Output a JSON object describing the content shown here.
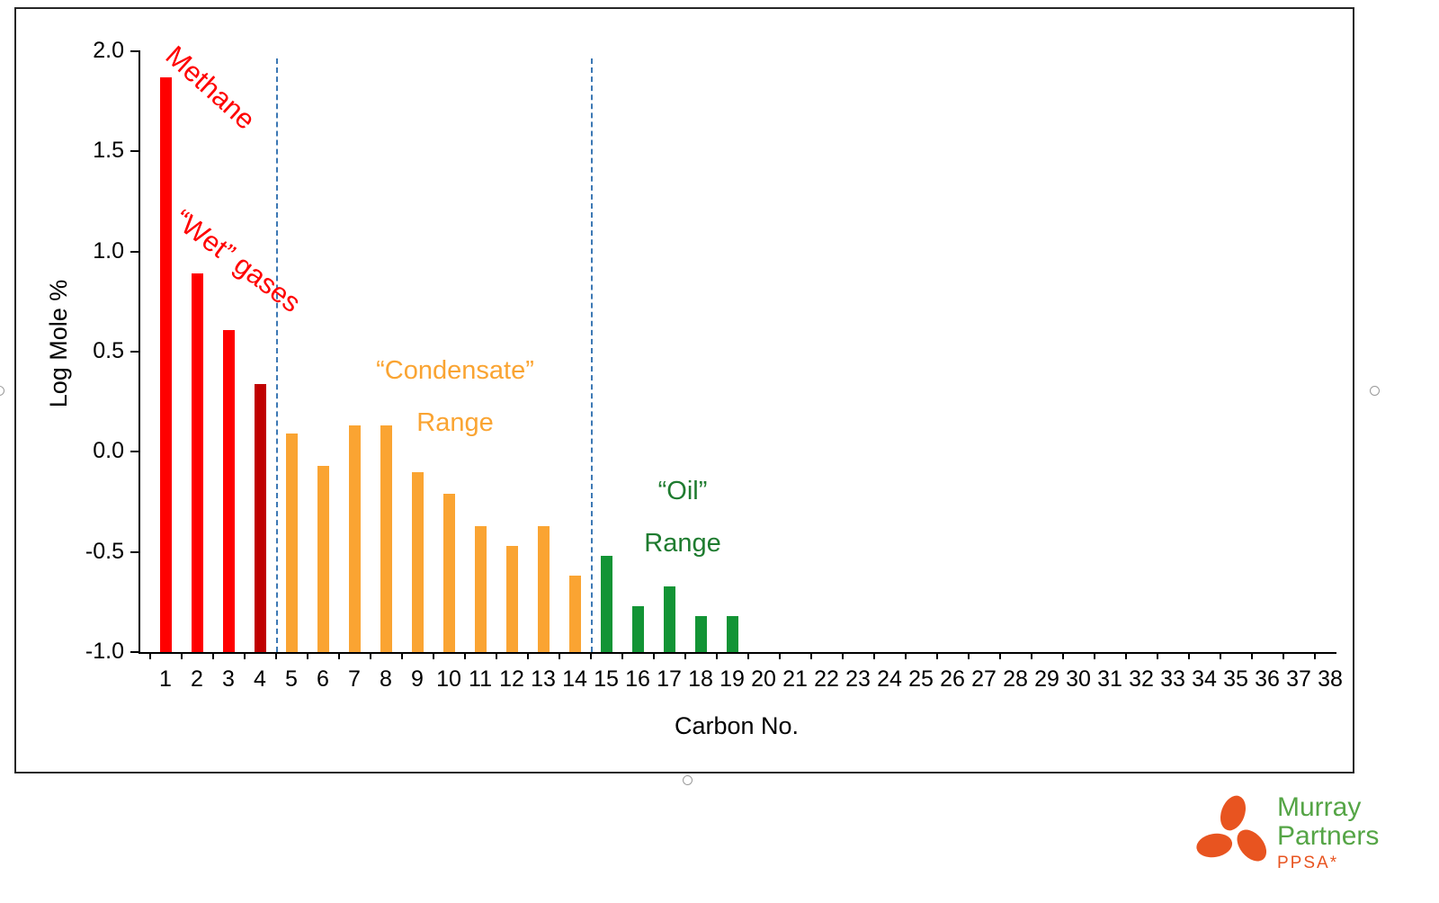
{
  "chart_data": {
    "type": "bar",
    "title": "",
    "xlabel": "Carbon No.",
    "ylabel": "Log Mole %",
    "ylim": [
      -1.0,
      2.0
    ],
    "ytick_step": 0.5,
    "grid": false,
    "legend": "none",
    "categories": [
      1,
      2,
      3,
      4,
      5,
      6,
      7,
      8,
      9,
      10,
      11,
      12,
      13,
      14,
      15,
      16,
      17,
      18,
      19,
      20,
      21,
      22,
      23,
      24,
      25,
      26,
      27,
      28,
      29,
      30,
      31,
      32,
      33,
      34,
      35,
      36,
      37,
      38
    ],
    "values": [
      1.87,
      0.89,
      0.61,
      0.34,
      0.09,
      -0.07,
      0.13,
      0.13,
      -0.1,
      -0.21,
      -0.37,
      -0.47,
      -0.37,
      -0.62,
      -0.52,
      -0.77,
      -0.67,
      -0.82,
      -0.82,
      null,
      null,
      null,
      null,
      null,
      null,
      null,
      null,
      null,
      null,
      null,
      null,
      null,
      null,
      null,
      null,
      null,
      null,
      null
    ],
    "color_segments": [
      {
        "from": 1,
        "to": 3,
        "color": "#FF0000"
      },
      {
        "from": 4,
        "to": 4,
        "color": "#C00000"
      },
      {
        "from": 5,
        "to": 14,
        "color": "#FAA432"
      },
      {
        "from": 15,
        "to": 19,
        "color": "#129435"
      }
    ],
    "dividers": [
      4.5,
      14.5
    ],
    "divider_color": "#3C78B4",
    "annotations": {
      "methane": {
        "text": "Methane",
        "color": "#FF0000"
      },
      "wet_gases": {
        "text": "“Wet” gases",
        "color": "#FF0000"
      },
      "condensate": {
        "line1": "“Condensate”",
        "line2": "Range",
        "color": "#FAA432"
      },
      "oil": {
        "line1": "“Oil”",
        "line2": "Range",
        "color": "#1E7B2F"
      }
    }
  },
  "logo": {
    "name_line1": "Murray",
    "name_line2": "Partners",
    "subtitle": "PPSA*",
    "icon_color": "#E85420",
    "text_color": "#55A546"
  },
  "colors": {
    "bar_red": "#FF0000",
    "bar_dark_red": "#C00000",
    "bar_orange": "#FAA432",
    "bar_green": "#129435",
    "divider_blue": "#3C78B4",
    "axis_black": "#000000"
  }
}
